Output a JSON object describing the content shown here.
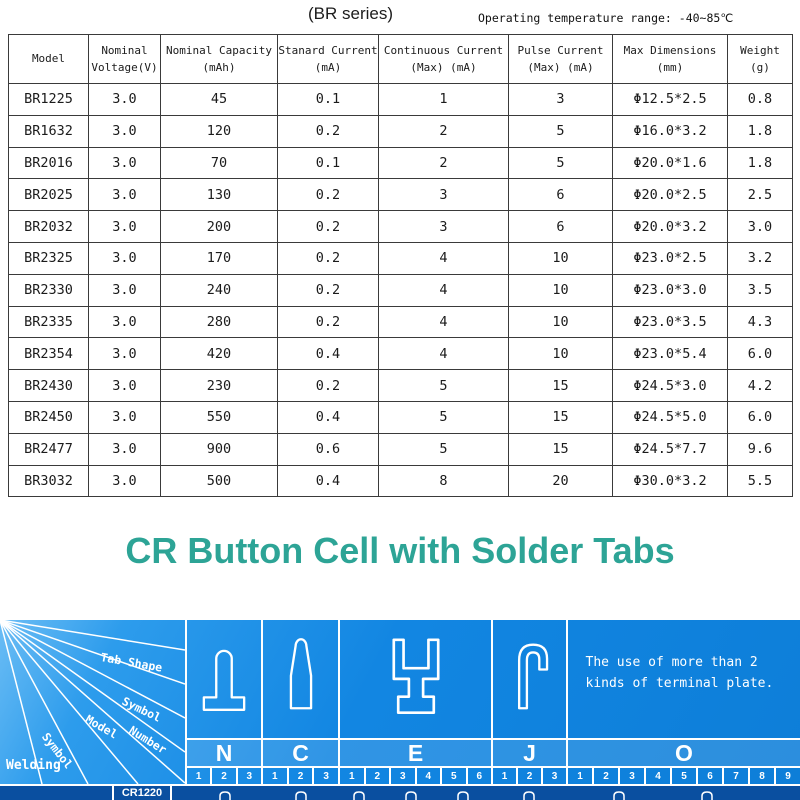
{
  "header": {
    "series_title": "(BR series)",
    "temp_note": "Operating temperature range: -40~85℃"
  },
  "table": {
    "columns": [
      {
        "l1": "Model",
        "l2": ""
      },
      {
        "l1": "Nominal",
        "l2": "Voltage(V)"
      },
      {
        "l1": "Nominal Capacity",
        "l2": "(mAh)"
      },
      {
        "l1": "Stanard Current",
        "l2": "(mA)"
      },
      {
        "l1": "Continuous Current",
        "l2": "(Max) (mA)"
      },
      {
        "l1": "Pulse Current",
        "l2": "(Max) (mA)"
      },
      {
        "l1": "Max Dimensions",
        "l2": "(mm)"
      },
      {
        "l1": "Weight",
        "l2": "(g)"
      }
    ],
    "rows": [
      [
        "BR1225",
        "3.0",
        "45",
        "0.1",
        "1",
        "3",
        "Φ12.5*2.5",
        "0.8"
      ],
      [
        "BR1632",
        "3.0",
        "120",
        "0.2",
        "2",
        "5",
        "Φ16.0*3.2",
        "1.8"
      ],
      [
        "BR2016",
        "3.0",
        "70",
        "0.1",
        "2",
        "5",
        "Φ20.0*1.6",
        "1.8"
      ],
      [
        "BR2025",
        "3.0",
        "130",
        "0.2",
        "3",
        "6",
        "Φ20.0*2.5",
        "2.5"
      ],
      [
        "BR2032",
        "3.0",
        "200",
        "0.2",
        "3",
        "6",
        "Φ20.0*3.2",
        "3.0"
      ],
      [
        "BR2325",
        "3.0",
        "170",
        "0.2",
        "4",
        "10",
        "Φ23.0*2.5",
        "3.2"
      ],
      [
        "BR2330",
        "3.0",
        "240",
        "0.2",
        "4",
        "10",
        "Φ23.0*3.0",
        "3.5"
      ],
      [
        "BR2335",
        "3.0",
        "280",
        "0.2",
        "4",
        "10",
        "Φ23.0*3.5",
        "4.3"
      ],
      [
        "BR2354",
        "3.0",
        "420",
        "0.4",
        "4",
        "10",
        "Φ23.0*5.4",
        "6.0"
      ],
      [
        "BR2430",
        "3.0",
        "230",
        "0.2",
        "5",
        "15",
        "Φ24.5*3.0",
        "4.2"
      ],
      [
        "BR2450",
        "3.0",
        "550",
        "0.4",
        "5",
        "15",
        "Φ24.5*5.0",
        "6.0"
      ],
      [
        "BR2477",
        "3.0",
        "900",
        "0.6",
        "5",
        "15",
        "Φ24.5*7.7",
        "9.6"
      ],
      [
        "BR3032",
        "3.0",
        "500",
        "0.4",
        "8",
        "20",
        "Φ30.0*3.2",
        "5.5"
      ]
    ]
  },
  "section_heading": "CR Button Cell with Solder Tabs",
  "diagram": {
    "corner_labels": {
      "tab_shape": "Tab Shape",
      "symbol_top": "Symbol",
      "model": "Model",
      "number": "Number",
      "symbol_left": "Symbol",
      "welding": "Welding"
    },
    "columns": [
      {
        "letter": "N",
        "numbers": [
          "1",
          "2",
          "3"
        ]
      },
      {
        "letter": "C",
        "numbers": [
          "1",
          "2",
          "3"
        ]
      },
      {
        "letter": "E",
        "numbers": [
          "1",
          "2",
          "3",
          "4",
          "5",
          "6"
        ]
      },
      {
        "letter": "J",
        "numbers": [
          "1",
          "2",
          "3"
        ]
      },
      {
        "letter": "O",
        "numbers": [
          "1",
          "2",
          "3",
          "4",
          "5",
          "6",
          "7",
          "8",
          "9"
        ],
        "note": "The use of more than 2 kinds of terminal plate."
      }
    ],
    "first_model": "CR1220"
  },
  "colors": {
    "heading_teal": "#2da496",
    "panel_blue": "#1185e2",
    "panel_dark_blue": "#0a4fa0"
  }
}
